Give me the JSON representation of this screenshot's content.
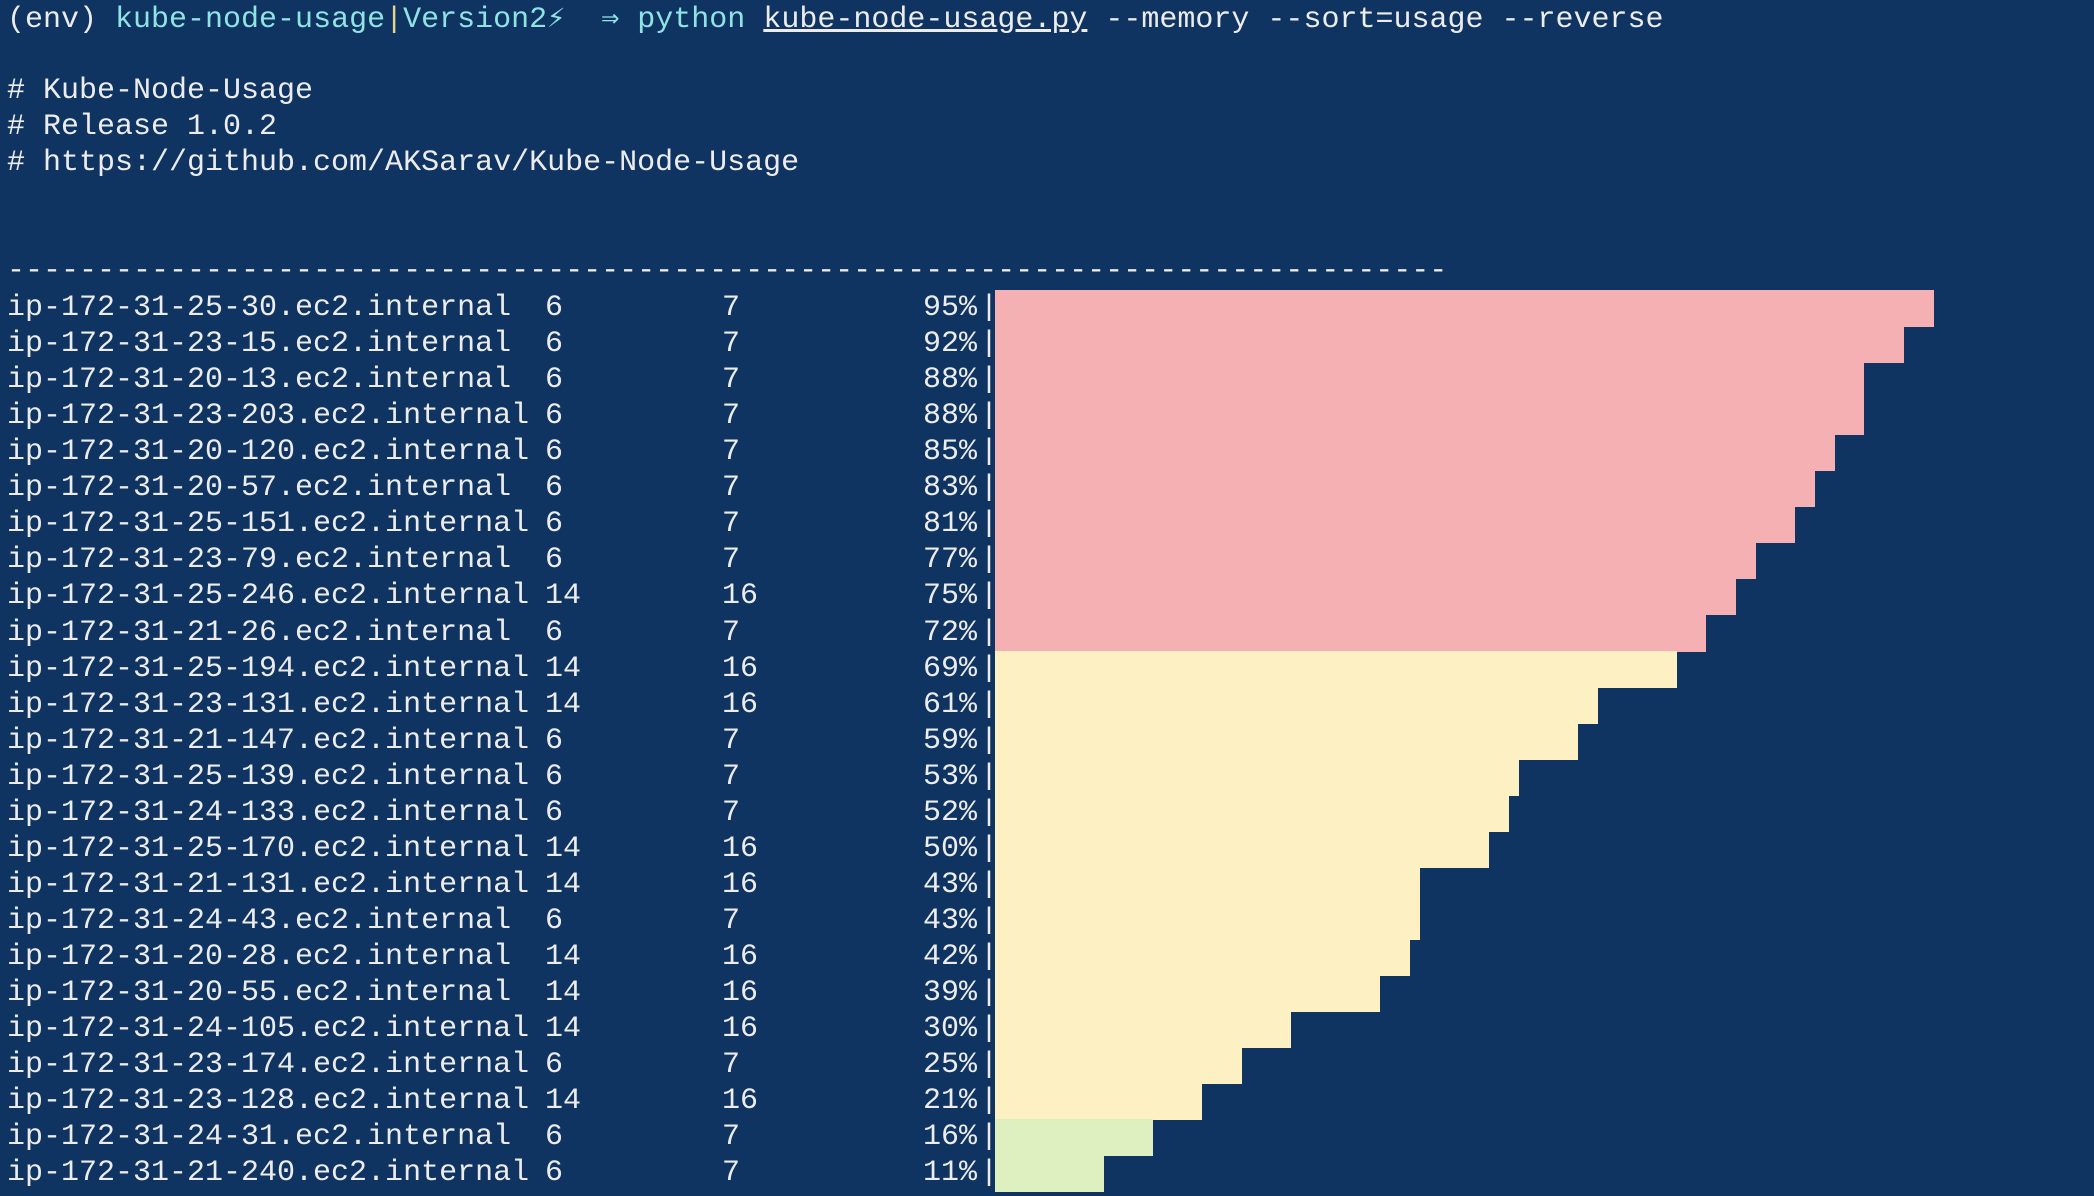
{
  "prompt": {
    "env": "(env)",
    "dir": "kube-node-usage",
    "sep": "|",
    "branch": "Version2⚡",
    "arrow": "⇒",
    "cmd": "python",
    "file": "kube-node-usage.py",
    "args": "--memory --sort=usage --reverse"
  },
  "header": [
    "# Kube-Node-Usage",
    "# Release 1.0.2",
    "# https://github.com/AKSarav/Kube-Node-Usage"
  ],
  "divider": "--------------------------------------------------------------------------------",
  "rows": [
    {
      "node": "ip-172-31-25-30.ec2.internal",
      "a": 6,
      "b": 7,
      "usage": 95,
      "usage_label": "95%",
      "color": "#f4b0b3"
    },
    {
      "node": "ip-172-31-23-15.ec2.internal",
      "a": 6,
      "b": 7,
      "usage": 92,
      "usage_label": "92%",
      "color": "#f4b0b3"
    },
    {
      "node": "ip-172-31-20-13.ec2.internal",
      "a": 6,
      "b": 7,
      "usage": 88,
      "usage_label": "88%",
      "color": "#f4b0b3"
    },
    {
      "node": "ip-172-31-23-203.ec2.internal",
      "a": 6,
      "b": 7,
      "usage": 88,
      "usage_label": "88%",
      "color": "#f4b0b3"
    },
    {
      "node": "ip-172-31-20-120.ec2.internal",
      "a": 6,
      "b": 7,
      "usage": 85,
      "usage_label": "85%",
      "color": "#f4b0b3"
    },
    {
      "node": "ip-172-31-20-57.ec2.internal",
      "a": 6,
      "b": 7,
      "usage": 83,
      "usage_label": "83%",
      "color": "#f4b0b3"
    },
    {
      "node": "ip-172-31-25-151.ec2.internal",
      "a": 6,
      "b": 7,
      "usage": 81,
      "usage_label": "81%",
      "color": "#f4b0b3"
    },
    {
      "node": "ip-172-31-23-79.ec2.internal",
      "a": 6,
      "b": 7,
      "usage": 77,
      "usage_label": "77%",
      "color": "#f4b0b3"
    },
    {
      "node": "ip-172-31-25-246.ec2.internal",
      "a": 14,
      "b": 16,
      "usage": 75,
      "usage_label": "75%",
      "color": "#f4b0b3"
    },
    {
      "node": "ip-172-31-21-26.ec2.internal",
      "a": 6,
      "b": 7,
      "usage": 72,
      "usage_label": "72%",
      "color": "#f4b0b3"
    },
    {
      "node": "ip-172-31-25-194.ec2.internal",
      "a": 14,
      "b": 16,
      "usage": 69,
      "usage_label": "69%",
      "color": "#fdf0c2"
    },
    {
      "node": "ip-172-31-23-131.ec2.internal",
      "a": 14,
      "b": 16,
      "usage": 61,
      "usage_label": "61%",
      "color": "#fdf0c2"
    },
    {
      "node": "ip-172-31-21-147.ec2.internal",
      "a": 6,
      "b": 7,
      "usage": 59,
      "usage_label": "59%",
      "color": "#fdf0c2"
    },
    {
      "node": "ip-172-31-25-139.ec2.internal",
      "a": 6,
      "b": 7,
      "usage": 53,
      "usage_label": "53%",
      "color": "#fdf0c2"
    },
    {
      "node": "ip-172-31-24-133.ec2.internal",
      "a": 6,
      "b": 7,
      "usage": 52,
      "usage_label": "52%",
      "color": "#fdf0c2"
    },
    {
      "node": "ip-172-31-25-170.ec2.internal",
      "a": 14,
      "b": 16,
      "usage": 50,
      "usage_label": "50%",
      "color": "#fdf0c2"
    },
    {
      "node": "ip-172-31-21-131.ec2.internal",
      "a": 14,
      "b": 16,
      "usage": 43,
      "usage_label": "43%",
      "color": "#fdf0c2"
    },
    {
      "node": "ip-172-31-24-43.ec2.internal",
      "a": 6,
      "b": 7,
      "usage": 43,
      "usage_label": "43%",
      "color": "#fdf0c2"
    },
    {
      "node": "ip-172-31-20-28.ec2.internal",
      "a": 14,
      "b": 16,
      "usage": 42,
      "usage_label": "42%",
      "color": "#fdf0c2"
    },
    {
      "node": "ip-172-31-20-55.ec2.internal",
      "a": 14,
      "b": 16,
      "usage": 39,
      "usage_label": "39%",
      "color": "#fdf0c2"
    },
    {
      "node": "ip-172-31-24-105.ec2.internal",
      "a": 14,
      "b": 16,
      "usage": 30,
      "usage_label": "30%",
      "color": "#fdf0c2"
    },
    {
      "node": "ip-172-31-23-174.ec2.internal",
      "a": 6,
      "b": 7,
      "usage": 25,
      "usage_label": "25%",
      "color": "#fdf0c2"
    },
    {
      "node": "ip-172-31-23-128.ec2.internal",
      "a": 14,
      "b": 16,
      "usage": 21,
      "usage_label": "21%",
      "color": "#fdf0c2"
    },
    {
      "node": "ip-172-31-24-31.ec2.internal",
      "a": 6,
      "b": 7,
      "usage": 16,
      "usage_label": "16%",
      "color": "#dff0c0"
    },
    {
      "node": "ip-172-31-21-240.ec2.internal",
      "a": 6,
      "b": 7,
      "usage": 11,
      "usage_label": "11%",
      "color": "#dff0c0"
    }
  ]
}
